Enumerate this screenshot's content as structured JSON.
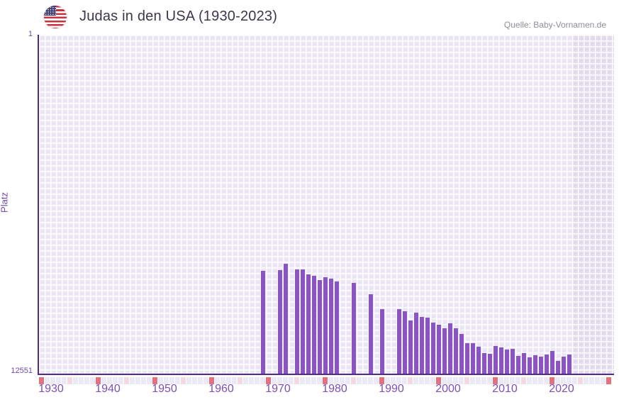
{
  "header": {
    "title": "Judas in den USA (1930-2023)",
    "flag_icon": "us-flag-icon",
    "source": "Quelle: Baby-Vornamen.de"
  },
  "y_axis": {
    "label": "Platz",
    "top_tick": "1",
    "bottom_tick": "12551"
  },
  "x_axis": {
    "tick_years": [
      1930,
      1940,
      1950,
      1960,
      1970,
      1980,
      1990,
      2000,
      2010,
      2020
    ]
  },
  "timeline_strip": {
    "start_year": 1930,
    "end_year": 2030,
    "decade_color": "#e0737f",
    "half_decade_color": "#f3d9e1",
    "default_color": "#ece9f6"
  },
  "colors": {
    "bar": "#8b55c0",
    "axis_line": "#4f2c87",
    "tick_text": "#7e50b4",
    "plot_background": "#ebe6f5",
    "future_background": "#e2dbee",
    "title_text": "#3e3649",
    "source_text": "#8f8f97"
  },
  "chart_data": {
    "type": "bar",
    "title": "Judas in den USA (1930-2023)",
    "xlabel": "",
    "ylabel": "Platz",
    "x_range": [
      1930,
      2030
    ],
    "data_end_year": 2023,
    "ylim": [
      1,
      12551
    ],
    "y_inverted": true,
    "legend": "none",
    "grid": "on",
    "points": [
      {
        "year": 1969,
        "platz": 8730
      },
      {
        "year": 1972,
        "platz": 8720
      },
      {
        "year": 1973,
        "platz": 8490
      },
      {
        "year": 1975,
        "platz": 8680
      },
      {
        "year": 1976,
        "platz": 8700
      },
      {
        "year": 1977,
        "platz": 8870
      },
      {
        "year": 1978,
        "platz": 8920
      },
      {
        "year": 1979,
        "platz": 9080
      },
      {
        "year": 1980,
        "platz": 8980
      },
      {
        "year": 1981,
        "platz": 9040
      },
      {
        "year": 1982,
        "platz": 9140
      },
      {
        "year": 1985,
        "platz": 9200
      },
      {
        "year": 1988,
        "platz": 9620
      },
      {
        "year": 1990,
        "platz": 10160
      },
      {
        "year": 1993,
        "platz": 10160
      },
      {
        "year": 1994,
        "platz": 10250
      },
      {
        "year": 1995,
        "platz": 10590
      },
      {
        "year": 1996,
        "platz": 10300
      },
      {
        "year": 1997,
        "platz": 10440
      },
      {
        "year": 1998,
        "platz": 10480
      },
      {
        "year": 1999,
        "platz": 10670
      },
      {
        "year": 2000,
        "platz": 10750
      },
      {
        "year": 2001,
        "platz": 10860
      },
      {
        "year": 2002,
        "platz": 10690
      },
      {
        "year": 2003,
        "platz": 10860
      },
      {
        "year": 2004,
        "platz": 11080
      },
      {
        "year": 2005,
        "platz": 11430
      },
      {
        "year": 2006,
        "platz": 11410
      },
      {
        "year": 2007,
        "platz": 11560
      },
      {
        "year": 2008,
        "platz": 11780
      },
      {
        "year": 2009,
        "platz": 11820
      },
      {
        "year": 2010,
        "platz": 11520
      },
      {
        "year": 2011,
        "platz": 11580
      },
      {
        "year": 2012,
        "platz": 11670
      },
      {
        "year": 2013,
        "platz": 11640
      },
      {
        "year": 2014,
        "platz": 11890
      },
      {
        "year": 2015,
        "platz": 11800
      },
      {
        "year": 2016,
        "platz": 11940
      },
      {
        "year": 2017,
        "platz": 11860
      },
      {
        "year": 2018,
        "platz": 11920
      },
      {
        "year": 2019,
        "platz": 11840
      },
      {
        "year": 2020,
        "platz": 11700
      },
      {
        "year": 2021,
        "platz": 12070
      },
      {
        "year": 2022,
        "platz": 11930
      },
      {
        "year": 2023,
        "platz": 11830
      }
    ]
  }
}
